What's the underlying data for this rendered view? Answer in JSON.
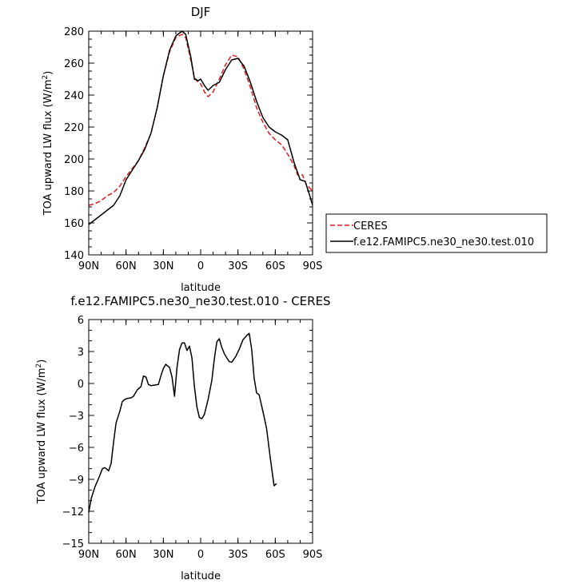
{
  "chart_data": [
    {
      "type": "line",
      "title": "DJF",
      "xlabel": "latitude",
      "ylabel_main": "TOA upward LW flux (W/m",
      "ylabel_sup": "2",
      "ylabel_end": ")",
      "xlim": [
        -90,
        90
      ],
      "ylim": [
        140,
        280
      ],
      "xticks": [
        -90,
        -60,
        -30,
        0,
        30,
        60,
        90
      ],
      "xtick_labels": [
        "90N",
        "60N",
        "30N",
        "0",
        "30S",
        "60S",
        "90S"
      ],
      "yticks": [
        140,
        160,
        180,
        200,
        220,
        240,
        260,
        280
      ],
      "ytick_labels": [
        "140",
        "160",
        "180",
        "200",
        "220",
        "240",
        "260",
        "280"
      ],
      "legend_position": "right",
      "series": [
        {
          "name": "CERES",
          "color": "#e31a1c",
          "dash": "dashed",
          "points": [
            [
              -90,
              171
            ],
            [
              -85,
              172
            ],
            [
              -80,
              174
            ],
            [
              -75,
              177
            ],
            [
              -70,
              179
            ],
            [
              -65,
              183
            ],
            [
              -60,
              189
            ],
            [
              -55,
              194
            ],
            [
              -50,
              199
            ],
            [
              -45,
              207
            ],
            [
              -40,
              216
            ],
            [
              -35,
              232
            ],
            [
              -30,
              252
            ],
            [
              -25,
              267
            ],
            [
              -20,
              276
            ],
            [
              -15,
              278
            ],
            [
              -12,
              276
            ],
            [
              -8,
              262
            ],
            [
              -5,
              251
            ],
            [
              -2,
              248
            ],
            [
              0,
              247
            ],
            [
              3,
              242
            ],
            [
              6,
              239
            ],
            [
              10,
              242
            ],
            [
              15,
              250
            ],
            [
              20,
              259
            ],
            [
              25,
              265
            ],
            [
              30,
              264
            ],
            [
              35,
              256
            ],
            [
              40,
              245
            ],
            [
              45,
              232
            ],
            [
              50,
              223
            ],
            [
              55,
              216
            ],
            [
              60,
              212
            ],
            [
              65,
              209
            ],
            [
              70,
              203
            ],
            [
              75,
              196
            ],
            [
              78,
              190
            ],
            [
              82,
              190
            ],
            [
              85,
              184
            ],
            [
              90,
              180
            ]
          ]
        },
        {
          "name": "f.e12.FAMIPC5.ne30_ne30.test.010",
          "color": "#000000",
          "dash": "solid",
          "points": [
            [
              -90,
              159
            ],
            [
              -85,
              162
            ],
            [
              -80,
              165
            ],
            [
              -75,
              168
            ],
            [
              -70,
              171
            ],
            [
              -65,
              177
            ],
            [
              -60,
              187
            ],
            [
              -55,
              193
            ],
            [
              -50,
              199
            ],
            [
              -45,
              206
            ],
            [
              -40,
              216
            ],
            [
              -35,
              232
            ],
            [
              -30,
              252
            ],
            [
              -25,
              268
            ],
            [
              -20,
              277
            ],
            [
              -15,
              280
            ],
            [
              -12,
              278
            ],
            [
              -8,
              264
            ],
            [
              -5,
              250
            ],
            [
              -2,
              249
            ],
            [
              0,
              250
            ],
            [
              3,
              246
            ],
            [
              6,
              243
            ],
            [
              10,
              246
            ],
            [
              15,
              248
            ],
            [
              20,
              256
            ],
            [
              25,
              262
            ],
            [
              30,
              263
            ],
            [
              35,
              258
            ],
            [
              40,
              248
            ],
            [
              45,
              236
            ],
            [
              50,
              226
            ],
            [
              55,
              220
            ],
            [
              60,
              217
            ],
            [
              65,
              215
            ],
            [
              70,
              212
            ],
            [
              75,
              198
            ],
            [
              80,
              187
            ],
            [
              84,
              186
            ],
            [
              87,
              179
            ],
            [
              90,
              171
            ]
          ]
        }
      ]
    },
    {
      "type": "line",
      "title": "f.e12.FAMIPC5.ne30_ne30.test.010 - CERES",
      "xlabel": "latitude",
      "ylabel_main": "TOA upward LW flux (W/m",
      "ylabel_sup": "2",
      "ylabel_end": ")",
      "xlim": [
        -90,
        90
      ],
      "ylim": [
        -15,
        6
      ],
      "xticks": [
        -90,
        -60,
        -30,
        0,
        30,
        60,
        90
      ],
      "xtick_labels": [
        "90N",
        "60N",
        "30N",
        "0",
        "30S",
        "60S",
        "90S"
      ],
      "yticks": [
        -15,
        -12,
        -9,
        -6,
        -3,
        0,
        3,
        6
      ],
      "ytick_labels": [
        "−15",
        "−12",
        "−9",
        "−6",
        "−3",
        "0",
        "3",
        "6"
      ],
      "series": [
        {
          "name": "",
          "color": "#000000",
          "dash": "solid",
          "points": [
            [
              -90,
              -12.1
            ],
            [
              -88,
              -10.8
            ],
            [
              -85,
              -9.7
            ],
            [
              -82,
              -8.9
            ],
            [
              -79,
              -8.0
            ],
            [
              -77,
              -7.9
            ],
            [
              -74,
              -8.2
            ],
            [
              -72,
              -7.5
            ],
            [
              -70,
              -5.5
            ],
            [
              -68,
              -3.7
            ],
            [
              -65,
              -2.6
            ],
            [
              -63,
              -1.7
            ],
            [
              -61,
              -1.5
            ],
            [
              -59,
              -1.4
            ],
            [
              -56,
              -1.35
            ],
            [
              -54,
              -1.2
            ],
            [
              -51,
              -0.6
            ],
            [
              -48,
              -0.3
            ],
            [
              -46,
              0.7
            ],
            [
              -44,
              0.6
            ],
            [
              -42,
              -0.1
            ],
            [
              -40,
              -0.2
            ],
            [
              -37,
              -0.15
            ],
            [
              -34,
              -0.1
            ],
            [
              -32,
              0.7
            ],
            [
              -30,
              1.4
            ],
            [
              -28,
              1.8
            ],
            [
              -25,
              1.5
            ],
            [
              -23,
              0.6
            ],
            [
              -21,
              -1.2
            ],
            [
              -19,
              1.5
            ],
            [
              -17,
              3.2
            ],
            [
              -15,
              3.8
            ],
            [
              -13,
              3.8
            ],
            [
              -11,
              3.1
            ],
            [
              -9,
              3.5
            ],
            [
              -7,
              2.4
            ],
            [
              -5,
              -0.3
            ],
            [
              -3,
              -2.2
            ],
            [
              -1,
              -3.2
            ],
            [
              1,
              -3.3
            ],
            [
              3,
              -2.9
            ],
            [
              6,
              -1.5
            ],
            [
              9,
              0.3
            ],
            [
              11,
              2.3
            ],
            [
              13,
              3.9
            ],
            [
              15,
              4.2
            ],
            [
              17,
              3.4
            ],
            [
              19,
              2.8
            ],
            [
              21,
              2.4
            ],
            [
              23,
              2.05
            ],
            [
              25,
              2.0
            ],
            [
              28,
              2.5
            ],
            [
              31,
              3.2
            ],
            [
              34,
              4.1
            ],
            [
              37,
              4.5
            ],
            [
              39,
              4.7
            ],
            [
              41,
              3.2
            ],
            [
              43,
              0.5
            ],
            [
              45,
              -0.9
            ],
            [
              47,
              -1.05
            ],
            [
              50,
              -2.6
            ],
            [
              53,
              -4.2
            ],
            [
              56,
              -7.0
            ],
            [
              59,
              -9.6
            ],
            [
              61,
              -9.4
            ]
          ]
        }
      ]
    }
  ]
}
